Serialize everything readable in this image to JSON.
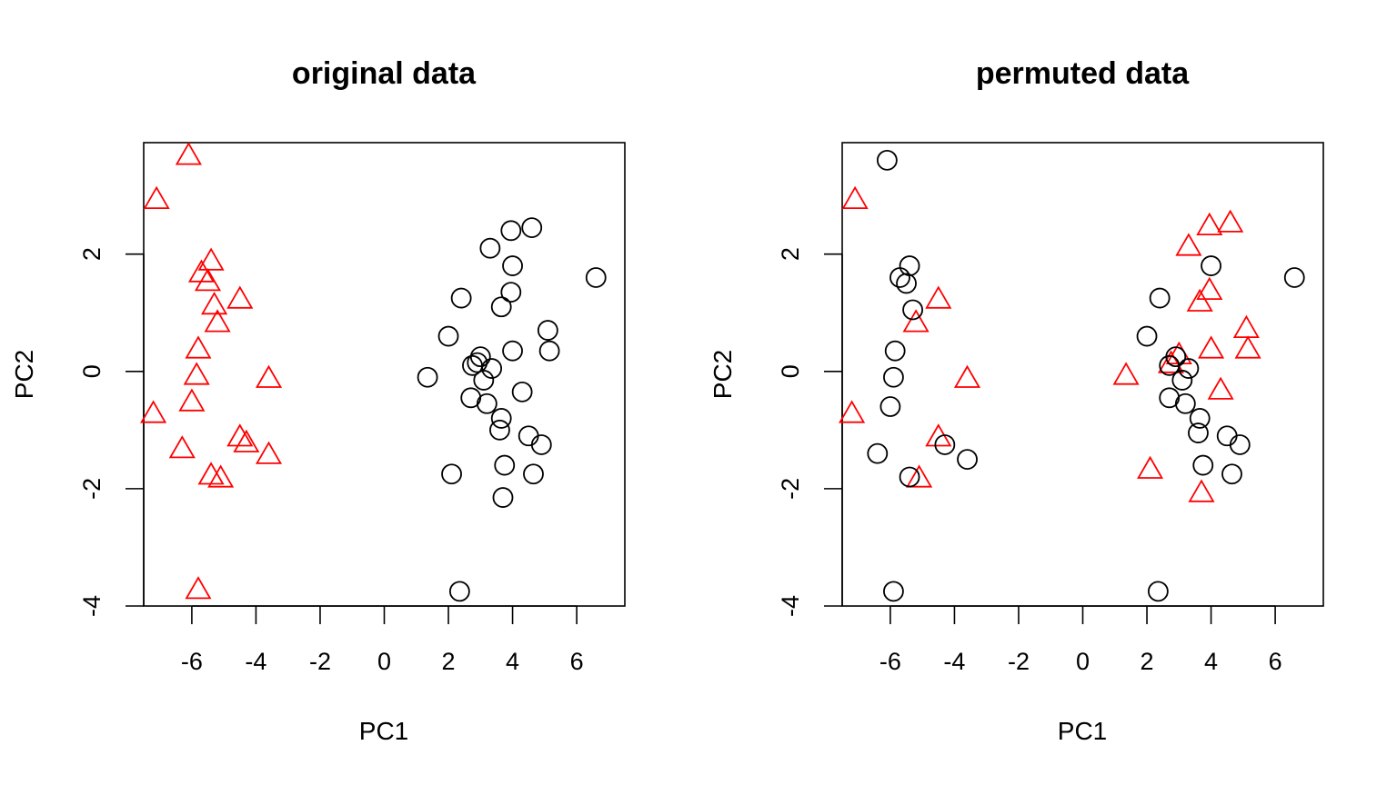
{
  "chart_data": [
    {
      "type": "scatter",
      "title": "original data",
      "xlabel": "PC1",
      "ylabel": "PC2",
      "xlim": [
        -7.5,
        7.5
      ],
      "ylim": [
        -4.0,
        3.9
      ],
      "xticks": [
        -6,
        -4,
        -2,
        0,
        2,
        4,
        6
      ],
      "yticks": [
        -4,
        -2,
        0,
        2
      ],
      "series": [
        {
          "marker": "triangle",
          "color": "#ff0000",
          "points": [
            [
              -6.1,
              3.65
            ],
            [
              -7.1,
              2.9
            ],
            [
              -5.4,
              1.85
            ],
            [
              -5.7,
              1.65
            ],
            [
              -5.5,
              1.5
            ],
            [
              -5.3,
              1.1
            ],
            [
              -4.5,
              1.2
            ],
            [
              -5.2,
              0.8
            ],
            [
              -5.8,
              0.35
            ],
            [
              -5.85,
              -0.1
            ],
            [
              -3.6,
              -0.15
            ],
            [
              -6.0,
              -0.55
            ],
            [
              -7.2,
              -0.75
            ],
            [
              -4.5,
              -1.15
            ],
            [
              -4.3,
              -1.25
            ],
            [
              -6.3,
              -1.35
            ],
            [
              -3.6,
              -1.45
            ],
            [
              -5.4,
              -1.8
            ],
            [
              -5.1,
              -1.85
            ],
            [
              -5.8,
              -3.75
            ]
          ]
        },
        {
          "marker": "circle",
          "color": "#000000",
          "points": [
            [
              4.6,
              2.45
            ],
            [
              3.95,
              2.4
            ],
            [
              3.3,
              2.1
            ],
            [
              4.0,
              1.8
            ],
            [
              6.6,
              1.6
            ],
            [
              3.95,
              1.35
            ],
            [
              2.4,
              1.25
            ],
            [
              3.65,
              1.1
            ],
            [
              5.1,
              0.7
            ],
            [
              2.0,
              0.6
            ],
            [
              5.15,
              0.35
            ],
            [
              4.0,
              0.35
            ],
            [
              3.0,
              0.25
            ],
            [
              2.9,
              0.15
            ],
            [
              2.75,
              0.1
            ],
            [
              3.35,
              0.05
            ],
            [
              1.35,
              -0.1
            ],
            [
              3.1,
              -0.15
            ],
            [
              4.3,
              -0.35
            ],
            [
              2.7,
              -0.45
            ],
            [
              3.2,
              -0.55
            ],
            [
              3.65,
              -0.8
            ],
            [
              3.6,
              -1.0
            ],
            [
              4.5,
              -1.1
            ],
            [
              4.9,
              -1.25
            ],
            [
              3.75,
              -1.6
            ],
            [
              4.65,
              -1.75
            ],
            [
              2.1,
              -1.75
            ],
            [
              3.7,
              -2.15
            ],
            [
              2.35,
              -3.75
            ]
          ]
        }
      ]
    },
    {
      "type": "scatter",
      "title": "permuted data",
      "xlabel": "PC1",
      "ylabel": "PC2",
      "xlim": [
        -7.5,
        7.5
      ],
      "ylim": [
        -4.0,
        3.9
      ],
      "xticks": [
        -6,
        -4,
        -2,
        0,
        2,
        4,
        6
      ],
      "yticks": [
        -4,
        -2,
        0,
        2
      ],
      "series": [
        {
          "marker": "triangle",
          "color": "#ff0000",
          "points": [
            [
              -7.1,
              2.9
            ],
            [
              4.6,
              2.5
            ],
            [
              3.95,
              2.45
            ],
            [
              3.3,
              2.1
            ],
            [
              3.95,
              1.35
            ],
            [
              3.65,
              1.15
            ],
            [
              -4.5,
              1.2
            ],
            [
              -5.2,
              0.8
            ],
            [
              5.1,
              0.7
            ],
            [
              5.15,
              0.35
            ],
            [
              4.0,
              0.35
            ],
            [
              3.0,
              0.25
            ],
            [
              2.75,
              0.1
            ],
            [
              1.35,
              -0.1
            ],
            [
              -3.6,
              -0.15
            ],
            [
              4.3,
              -0.35
            ],
            [
              -7.2,
              -0.75
            ],
            [
              -4.5,
              -1.15
            ],
            [
              2.1,
              -1.7
            ],
            [
              -5.1,
              -1.85
            ],
            [
              3.7,
              -2.1
            ]
          ]
        },
        {
          "marker": "circle",
          "color": "#000000",
          "points": [
            [
              -6.1,
              3.6
            ],
            [
              -5.4,
              1.8
            ],
            [
              -5.7,
              1.6
            ],
            [
              -5.5,
              1.5
            ],
            [
              -5.3,
              1.05
            ],
            [
              -5.85,
              0.35
            ],
            [
              -5.9,
              -0.1
            ],
            [
              -6.0,
              -0.6
            ],
            [
              -6.4,
              -1.4
            ],
            [
              -4.3,
              -1.25
            ],
            [
              -3.6,
              -1.5
            ],
            [
              -5.4,
              -1.8
            ],
            [
              -5.9,
              -3.75
            ],
            [
              4.0,
              1.8
            ],
            [
              6.6,
              1.6
            ],
            [
              2.4,
              1.25
            ],
            [
              2.0,
              0.6
            ],
            [
              2.9,
              0.25
            ],
            [
              2.7,
              0.1
            ],
            [
              3.3,
              0.05
            ],
            [
              3.1,
              -0.15
            ],
            [
              2.7,
              -0.45
            ],
            [
              3.2,
              -0.55
            ],
            [
              3.65,
              -0.8
            ],
            [
              3.6,
              -1.05
            ],
            [
              4.5,
              -1.1
            ],
            [
              4.9,
              -1.25
            ],
            [
              3.75,
              -1.6
            ],
            [
              4.65,
              -1.75
            ],
            [
              2.35,
              -3.75
            ]
          ]
        }
      ]
    }
  ]
}
